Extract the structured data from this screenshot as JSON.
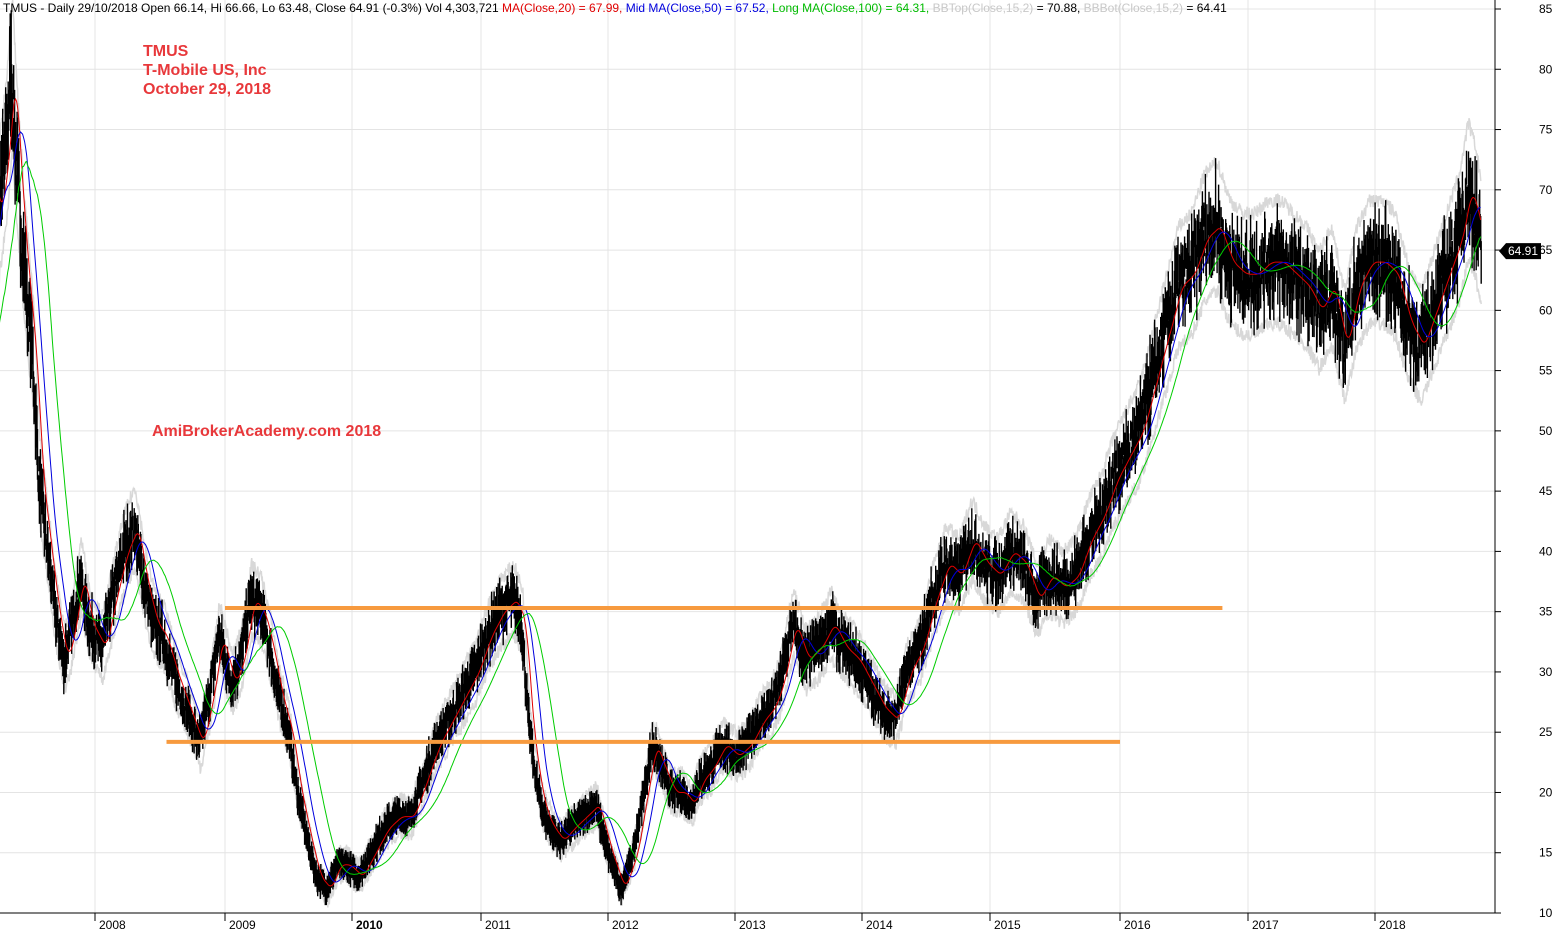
{
  "header": {
    "symbol_info": "TMUS - Daily 29/10/2018 Open 66.14, Hi 66.66, Lo 63.48, Close 64.91 (-0.3%) Vol 4,303,721 ",
    "ma20": "MA(Close,20) = 67.99, ",
    "ma50": "Mid MA(Close,50) = 67.52, ",
    "ma100": "Long MA(Close,100) = 64.31, ",
    "bbtop_label": "BBTop(Close,15,2)",
    "bbtop_value": " = 70.88, ",
    "bbbot_label": "BBBot(Close,15,2)",
    "bbbot_value": " = 64.41"
  },
  "annotations": {
    "ticker": "TMUS",
    "company": "T-Mobile US, Inc",
    "date": "October 29, 2018",
    "watermark": "AmiBrokerAcademy.com  2018"
  },
  "colors": {
    "price": "#000000",
    "ma20": "#e00000",
    "ma50": "#0000dd",
    "ma100": "#00cc00",
    "bollinger": "#d8d8d8",
    "levels": "#f79a3e",
    "annotation": "#e8383b",
    "last_price_badge": "#000000"
  },
  "chart_data": {
    "type": "line",
    "ylim": [
      10,
      85
    ],
    "y_ticks": [
      10,
      15,
      20,
      25,
      30,
      35,
      40,
      45,
      50,
      55,
      60,
      65,
      70,
      75,
      80,
      85
    ],
    "x_ticks": [
      "2008",
      "2009",
      "2010",
      "2011",
      "2012",
      "2013",
      "2014",
      "2015",
      "2016",
      "2017",
      "2018"
    ],
    "last_price": "64.91",
    "grid": true,
    "horizontal_levels": [
      {
        "value": 35.3,
        "from": "2009",
        "to": "2016.8"
      },
      {
        "value": 24.2,
        "from": "2008.55",
        "to": "2016"
      }
    ],
    "close_series": {
      "name": "Close",
      "x": [
        2007.0,
        2007.1,
        2007.15,
        2007.22,
        2007.28,
        2007.33,
        2007.36,
        2007.42,
        2007.5,
        2007.55,
        2007.62,
        2007.68,
        2007.75,
        2007.8,
        2007.88,
        2007.95,
        2008.05,
        2008.15,
        2008.22,
        2008.3,
        2008.38,
        2008.45,
        2008.52,
        2008.6,
        2008.7,
        2008.8,
        2008.88,
        2008.95,
        2009.05,
        2009.12,
        2009.2,
        2009.28,
        2009.35,
        2009.42,
        2009.5,
        2009.57,
        2009.65,
        2009.72,
        2009.8,
        2009.88,
        2009.95,
        2010.05,
        2010.15,
        2010.25,
        2010.35,
        2010.45,
        2010.55,
        2010.65,
        2010.75,
        2010.85,
        2010.95,
        2011.05,
        2011.15,
        2011.25,
        2011.32,
        2011.38,
        2011.45,
        2011.5,
        2011.55,
        2011.62,
        2011.7,
        2011.8,
        2011.9,
        2012.0,
        2012.1,
        2012.2,
        2012.28,
        2012.35,
        2012.42,
        2012.5,
        2012.58,
        2012.65,
        2012.72,
        2012.8,
        2012.9,
        2013.0,
        2013.1,
        2013.2,
        2013.28,
        2013.35,
        2013.45,
        2013.55,
        2013.65,
        2013.75,
        2013.85,
        2013.95,
        2014.05,
        2014.15,
        2014.25,
        2014.35,
        2014.45,
        2014.55,
        2014.65,
        2014.75,
        2014.85,
        2014.95,
        2015.05,
        2015.15,
        2015.25,
        2015.35,
        2015.45,
        2015.55,
        2015.65,
        2015.75,
        2015.85,
        2015.95,
        2016.05,
        2016.15,
        2016.25,
        2016.35,
        2016.45,
        2016.55,
        2016.65,
        2016.75,
        2016.85,
        2016.95,
        2017.05,
        2017.15,
        2017.25,
        2017.35,
        2017.45,
        2017.55,
        2017.65,
        2017.75,
        2017.85,
        2017.95,
        2018.05,
        2018.15,
        2018.25,
        2018.35,
        2018.45,
        2018.55,
        2018.65,
        2018.72,
        2018.78,
        2018.83
      ],
      "y": [
        52,
        60,
        72,
        68,
        73,
        80,
        74,
        65,
        56,
        46,
        40,
        35,
        31,
        33,
        38,
        34,
        32,
        37,
        40,
        42,
        37,
        34,
        33,
        30,
        27,
        24,
        28,
        33,
        29,
        31,
        36,
        35,
        32,
        28,
        25,
        20,
        16,
        13,
        12,
        14,
        14,
        13,
        15,
        17,
        18,
        18,
        21,
        24,
        26,
        28,
        30,
        33,
        35,
        36,
        34,
        25,
        20,
        18,
        17,
        16,
        17,
        18,
        19,
        15,
        12,
        15,
        20,
        24,
        22,
        20,
        20,
        19,
        21,
        22,
        24,
        23,
        24,
        26,
        27,
        29,
        34,
        31,
        32,
        34,
        32,
        31,
        29,
        27,
        26,
        30,
        32,
        36,
        39,
        38,
        41,
        39,
        38,
        40,
        39,
        36,
        38,
        37,
        38,
        41,
        43,
        46,
        48,
        50,
        54,
        58,
        62,
        63,
        66,
        67,
        64,
        63,
        63,
        64,
        64,
        63,
        62,
        60,
        62,
        57,
        62,
        64,
        64,
        63,
        59,
        57,
        60,
        63,
        66,
        70,
        68,
        64.91
      ]
    },
    "series": [
      {
        "name": "MA(Close,20)",
        "color": "ma20",
        "lag": 0.04
      },
      {
        "name": "Mid MA(Close,50)",
        "color": "ma50",
        "lag": 0.09
      },
      {
        "name": "Long MA(Close,100)",
        "color": "ma100",
        "lag": 0.18
      },
      {
        "name": "BBTop(Close,15,2)",
        "color": "bollinger",
        "offset": 2.0
      },
      {
        "name": "BBBot(Close,15,2)",
        "color": "bollinger",
        "offset": -2.0
      }
    ]
  }
}
